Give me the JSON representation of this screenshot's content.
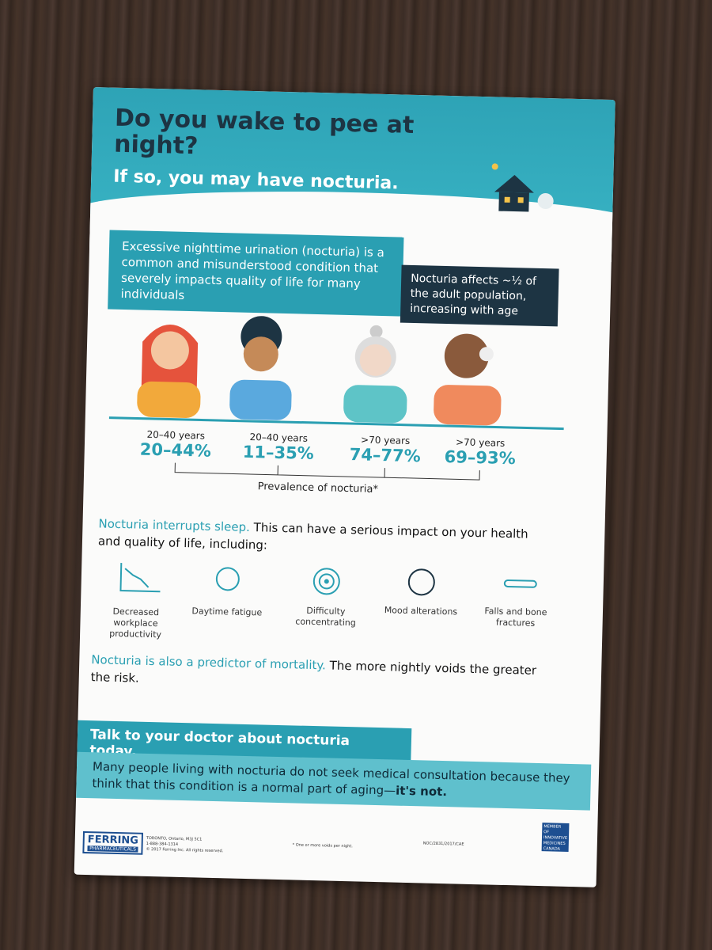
{
  "header": {
    "headline": "Do you wake to pee at night?",
    "subheadline": "If so, you may have nocturia."
  },
  "callouts": [
    "Excessive nighttime urination (nocturia) is a common and misunderstood condition that severely impacts quality of life for many individuals",
    "Nocturia affects ~½ of the adult population, increasing with age"
  ],
  "groups": [
    {
      "age": "20–40 years",
      "range": "20–44%"
    },
    {
      "age": "20–40 years",
      "range": "11–35%"
    },
    {
      "age": ">70 years",
      "range": "74–77%"
    },
    {
      "age": ">70 years",
      "range": "69–93%"
    }
  ],
  "prevalence_label": "Prevalence of nocturia*",
  "sleep": {
    "lead": "Nocturia interrupts sleep.",
    "text": "This can have a serious impact on your health and quality of life, including:"
  },
  "impacts": [
    "Decreased workplace productivity",
    "Daytime fatigue",
    "Difficulty concentrating",
    "Mood alterations",
    "Falls and bone fractures"
  ],
  "mortality": {
    "lead": "Nocturia is also a predictor of mortality.",
    "text": "The more nightly voids the greater the risk."
  },
  "cta": "Talk to your doctor about nocturia today.",
  "note": {
    "text": "Many people living with nocturia do not seek medical consultation because they think that this condition is a normal part of aging—",
    "emphasis": "it's not."
  },
  "footer": {
    "logo": "FERRING",
    "logo_sub": "PHARMACEUTICALS",
    "address": [
      "TORONTO, Ontario, M3J 5C1",
      "1-888-384-1314",
      "© 2017 Ferring Inc. All rights reserved."
    ],
    "footnote": "* One or more voids per night.",
    "code": "NOC/2831/2017/CAE",
    "badge": "MEMBER OF INNOVATIVE MEDICINES CANADA"
  }
}
